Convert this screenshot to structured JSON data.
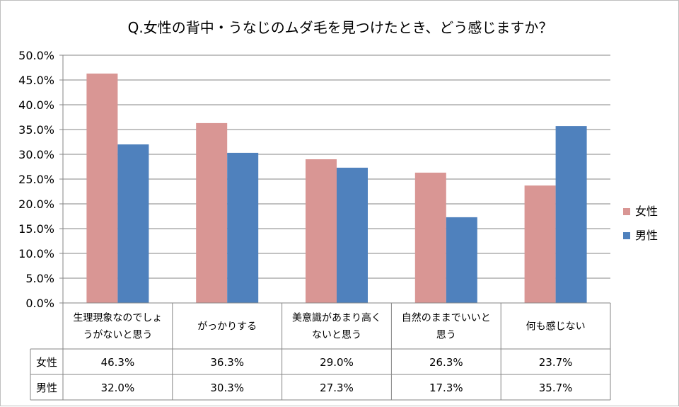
{
  "chart_data": {
    "type": "bar",
    "title": "Q.女性の背中・うなじのムダ毛を見つけたとき、どう感じますか？",
    "categories": [
      [
        "生理現象なのでしょ",
        "うがないと思う"
      ],
      [
        "がっかりする"
      ],
      [
        "美意識があまり高く",
        "ないと思う"
      ],
      [
        "自然のままでいいと",
        "思う"
      ],
      [
        "何も感じない"
      ]
    ],
    "series": [
      {
        "name": "女性",
        "color": "#d99694",
        "values": [
          46.3,
          36.3,
          29.0,
          26.3,
          23.7
        ],
        "labels": [
          "46.3%",
          "36.3%",
          "29.0%",
          "26.3%",
          "23.7%"
        ]
      },
      {
        "name": "男性",
        "color": "#4f81bd",
        "values": [
          32.0,
          30.3,
          27.3,
          17.3,
          35.7
        ],
        "labels": [
          "32.0%",
          "30.3%",
          "27.3%",
          "17.3%",
          "35.7%"
        ]
      }
    ],
    "ylim": [
      0,
      50
    ],
    "yticks": [
      "0.0%",
      "5.0%",
      "10.0%",
      "15.0%",
      "20.0%",
      "25.0%",
      "30.0%",
      "35.0%",
      "40.0%",
      "45.0%",
      "50.0%"
    ],
    "grid": true,
    "legend_position": "right",
    "data_table": true
  }
}
